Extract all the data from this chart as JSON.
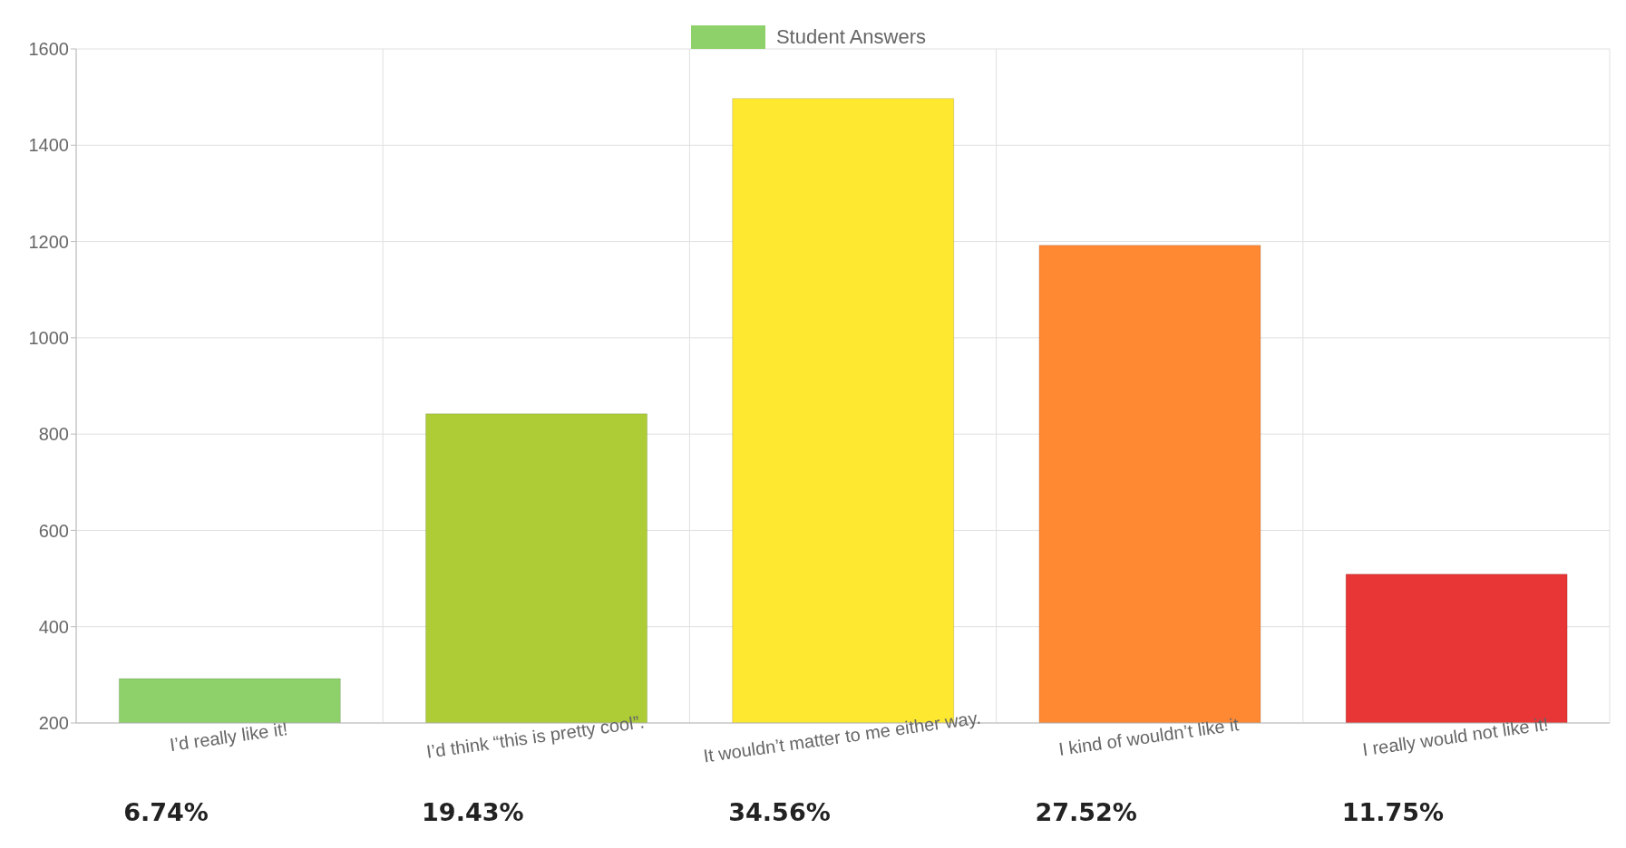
{
  "chart_data": {
    "type": "bar",
    "categories": [
      "I’d really like it!",
      "I’d think “this is pretty cool”.",
      "It wouldn’t matter to me either way.",
      "I kind of wouldn’t like it",
      "I really would not like it!"
    ],
    "series": [
      {
        "name": "Student Answers",
        "color": "#8ed16b",
        "colors": [
          "#8ed16b",
          "#adcc36",
          "#ffe930",
          "#ff8833",
          "#e83535"
        ],
        "values": [
          292,
          842,
          1497,
          1192,
          509
        ]
      }
    ],
    "annotations": [
      "6.74%",
      "19.43%",
      "34.56%",
      "27.52%",
      "11.75%"
    ],
    "ylim": [
      200,
      1600
    ],
    "yticks": [
      200,
      400,
      600,
      800,
      1000,
      1200,
      1400,
      1600
    ],
    "grid": true,
    "legend": "top"
  }
}
